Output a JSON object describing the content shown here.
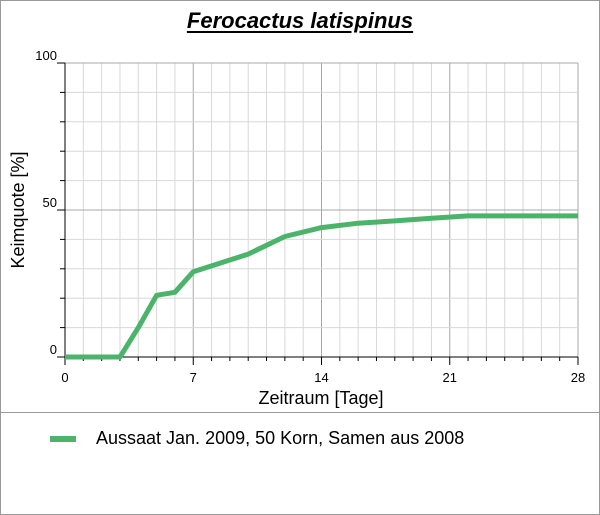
{
  "chart_data": {
    "type": "line",
    "title": "Ferocactus latispinus",
    "xlabel": "Zeitraum [Tage]",
    "ylabel": "Keimquote [%]",
    "xlim": [
      0,
      28
    ],
    "ylim": [
      0,
      100
    ],
    "x_ticks": [
      0,
      7,
      14,
      21,
      28
    ],
    "y_ticks": [
      0,
      50,
      100
    ],
    "grid": true,
    "legend_position": "bottom",
    "series": [
      {
        "name": "Aussaat Jan. 2009, 50 Korn, Samen aus 2008",
        "color": "#4cb46a",
        "x": [
          0,
          3,
          4,
          5,
          6,
          7,
          8,
          10,
          12,
          14,
          16,
          18,
          20,
          22,
          28
        ],
        "y": [
          0,
          0,
          10,
          21,
          22,
          29,
          31,
          35,
          41,
          44,
          45.5,
          46.3,
          47.2,
          48,
          48
        ]
      }
    ]
  }
}
